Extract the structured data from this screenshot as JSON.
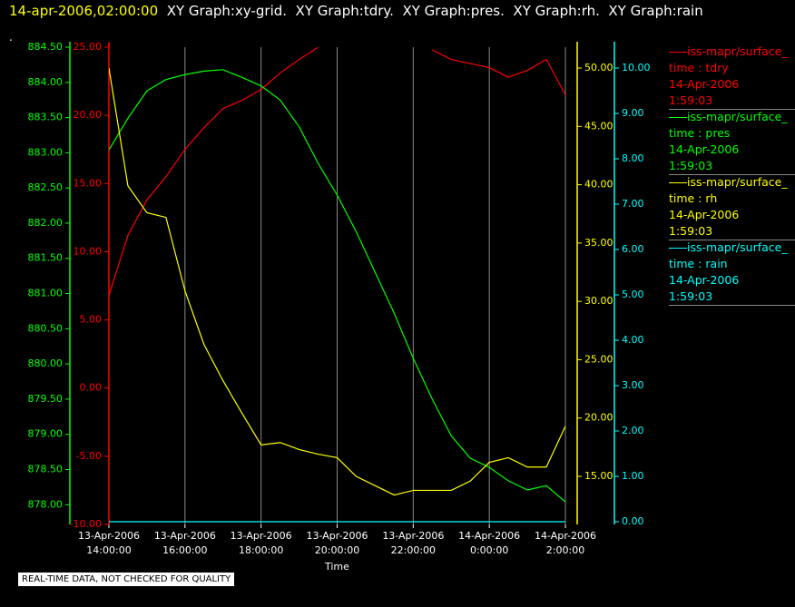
{
  "chart_data": {
    "type": "line",
    "title": "14-apr-2006,02:00:00",
    "subtitle": "XY Graph:xy-grid.  XY Graph:tdry.  XY Graph:pres.  XY Graph:rh.  XY Graph:rain",
    "corner_mark": ".",
    "note": "REAL-TIME DATA, NOT CHECKED FOR QUALITY",
    "xlabel": "Time",
    "grid": true,
    "x": [
      "2006-04-13T14:00:00",
      "2006-04-13T14:30:00",
      "2006-04-13T15:00:00",
      "2006-04-13T15:30:00",
      "2006-04-13T16:00:00",
      "2006-04-13T16:30:00",
      "2006-04-13T17:00:00",
      "2006-04-13T17:30:00",
      "2006-04-13T18:00:00",
      "2006-04-13T18:30:00",
      "2006-04-13T19:00:00",
      "2006-04-13T19:30:00",
      "2006-04-13T20:00:00",
      "2006-04-13T20:30:00",
      "2006-04-13T21:00:00",
      "2006-04-13T21:30:00",
      "2006-04-13T22:00:00",
      "2006-04-13T22:30:00",
      "2006-04-13T23:00:00",
      "2006-04-13T23:30:00",
      "2006-04-14T00:00:00",
      "2006-04-14T00:30:00",
      "2006-04-14T01:00:00",
      "2006-04-14T01:30:00",
      "2006-04-14T02:00:00"
    ],
    "xlim": [
      "2006-04-13T14:00:00",
      "2006-04-14T02:00:00"
    ],
    "xticks": [
      {
        "value": "2006-04-13T14:00:00",
        "label": "13-Apr-2006\n14:00:00"
      },
      {
        "value": "2006-04-13T16:00:00",
        "label": "13-Apr-2006\n16:00:00"
      },
      {
        "value": "2006-04-13T18:00:00",
        "label": "13-Apr-2006\n18:00:00"
      },
      {
        "value": "2006-04-13T20:00:00",
        "label": "13-Apr-2006\n20:00:00"
      },
      {
        "value": "2006-04-13T22:00:00",
        "label": "13-Apr-2006\n22:00:00"
      },
      {
        "value": "2006-04-14T00:00:00",
        "label": "14-Apr-2006\n0:00:00"
      },
      {
        "value": "2006-04-14T02:00:00",
        "label": "14-Apr-2006\n2:00:00"
      }
    ],
    "axes": {
      "pres": {
        "color": "#00ff00",
        "ylim": [
          877.72,
          884.5
        ],
        "yticks": [
          {
            "value": 878,
            "label": "878.00"
          },
          {
            "value": 878.5,
            "label": "878.50"
          },
          {
            "value": 879,
            "label": "879.00"
          },
          {
            "value": 879.5,
            "label": "879.50"
          },
          {
            "value": 880,
            "label": "880.00"
          },
          {
            "value": 880.5,
            "label": "880.50"
          },
          {
            "value": 881,
            "label": "881.00"
          },
          {
            "value": 881.5,
            "label": "881.50"
          },
          {
            "value": 882,
            "label": "882.00"
          },
          {
            "value": 882.5,
            "label": "882.50"
          },
          {
            "value": 883,
            "label": "883.00"
          },
          {
            "value": 883.5,
            "label": "883.50"
          },
          {
            "value": 884,
            "label": "884.00"
          },
          {
            "value": 884.5,
            "label": "884.50"
          }
        ]
      },
      "tdry": {
        "color": "#ff0000",
        "ylim": [
          -10,
          25
        ],
        "yticks": [
          {
            "value": -10,
            "label": "-10.00"
          },
          {
            "value": -5,
            "label": "-5.00"
          },
          {
            "value": 0,
            "label": "0.00"
          },
          {
            "value": 5,
            "label": "5.00"
          },
          {
            "value": 10,
            "label": "10.00"
          },
          {
            "value": 15,
            "label": "15.00"
          },
          {
            "value": 20,
            "label": "20.00"
          },
          {
            "value": 25,
            "label": "25.00"
          }
        ]
      },
      "rh": {
        "color": "#ffff00",
        "ylim": [
          10.88,
          51.79
        ],
        "yticks": [
          {
            "value": 15,
            "label": "15.00"
          },
          {
            "value": 20,
            "label": "20.00"
          },
          {
            "value": 25,
            "label": "25.00"
          },
          {
            "value": 30,
            "label": "30.00"
          },
          {
            "value": 35,
            "label": "35.00"
          },
          {
            "value": 40,
            "label": "40.00"
          },
          {
            "value": 45,
            "label": "45.00"
          },
          {
            "value": 50,
            "label": "50.00"
          }
        ]
      },
      "rain": {
        "color": "#00ffff",
        "ylim": [
          -0.06,
          10.46
        ],
        "yticks": [
          {
            "value": 0,
            "label": "0.00"
          },
          {
            "value": 1,
            "label": "1.00"
          },
          {
            "value": 2,
            "label": "2.00"
          },
          {
            "value": 3,
            "label": "3.00"
          },
          {
            "value": 4,
            "label": "4.00"
          },
          {
            "value": 5,
            "label": "5.00"
          },
          {
            "value": 6,
            "label": "6.00"
          },
          {
            "value": 7,
            "label": "7.00"
          },
          {
            "value": 8,
            "label": "8.00"
          },
          {
            "value": 9,
            "label": "9.00"
          },
          {
            "value": 10,
            "label": "10.00"
          }
        ]
      }
    },
    "series": [
      {
        "name": "iss-mapr/surface_",
        "axis": "tdry",
        "color": "#ff0000",
        "label": "time : tdry",
        "date": "14-Apr-2006",
        "time": "1:59:03",
        "values": [
          6.8,
          11.2,
          13.8,
          15.5,
          17.5,
          19.1,
          20.5,
          21.1,
          21.9,
          23.1,
          24.1,
          25,
          null,
          null,
          null,
          null,
          null,
          24.8,
          24.1,
          23.8,
          23.5,
          22.8,
          23.3,
          24.1,
          21.5
        ]
      },
      {
        "name": "iss-mapr/surface_",
        "axis": "pres",
        "color": "#00ff00",
        "label": "time : pres",
        "date": "14-Apr-2006",
        "time": "1:59:03",
        "values": [
          883.04,
          883.49,
          883.88,
          884.04,
          884.11,
          884.16,
          884.18,
          884.07,
          883.95,
          883.75,
          883.37,
          882.85,
          882.4,
          881.88,
          881.3,
          880.72,
          880.08,
          879.5,
          878.98,
          878.66,
          878.53,
          878.34,
          878.21,
          878.27,
          878.04
        ]
      },
      {
        "name": "iss-mapr/surface_",
        "axis": "rh",
        "color": "#ffff00",
        "label": "time : rh",
        "date": "14-Apr-2006",
        "time": "1:59:03",
        "values": [
          50,
          39.9,
          37.6,
          37.2,
          30.9,
          26.3,
          23.2,
          20.4,
          17.7,
          17.9,
          17.3,
          16.9,
          16.6,
          15,
          14.2,
          13.4,
          13.8,
          13.8,
          13.8,
          14.6,
          16.2,
          16.6,
          15.8,
          15.8,
          19.3
        ]
      },
      {
        "name": "iss-mapr/surface_",
        "axis": "rain",
        "color": "#00ffff",
        "label": "time : rain",
        "date": "14-Apr-2006",
        "time": "1:59:03",
        "values": [
          0,
          0,
          0,
          0,
          0,
          0,
          0,
          0,
          0,
          0,
          0,
          0,
          0,
          0,
          0,
          0,
          0,
          0,
          0,
          0,
          0,
          0,
          0,
          0,
          0
        ]
      }
    ]
  }
}
